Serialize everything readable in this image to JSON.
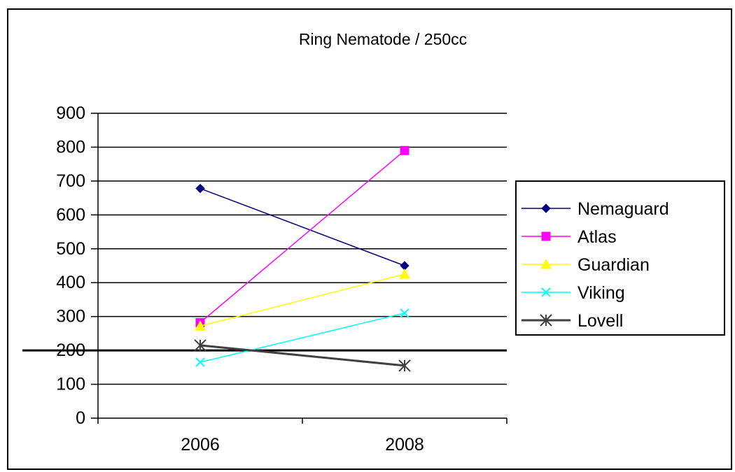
{
  "chart_data": {
    "type": "line",
    "title": "Ring Nematode / 250cc",
    "categories": [
      "2006",
      "2008"
    ],
    "ylim": [
      0,
      900
    ],
    "yticks": [
      0,
      100,
      200,
      300,
      400,
      500,
      600,
      700,
      800,
      900
    ],
    "grid": true,
    "legend": "right",
    "reference_line": 200,
    "series": [
      {
        "name": "Nemaguard",
        "values": [
          678,
          450
        ],
        "color": "#000080",
        "marker": "diamond"
      },
      {
        "name": "Atlas",
        "values": [
          282,
          790
        ],
        "color": "#ff00ff",
        "marker": "square"
      },
      {
        "name": "Guardian",
        "values": [
          272,
          425
        ],
        "color": "#ffff00",
        "marker": "triangle"
      },
      {
        "name": "Viking",
        "values": [
          165,
          310
        ],
        "color": "#00ffff",
        "marker": "x"
      },
      {
        "name": "Lovell",
        "values": [
          215,
          155
        ],
        "color": "#404040",
        "marker": "star"
      }
    ]
  }
}
